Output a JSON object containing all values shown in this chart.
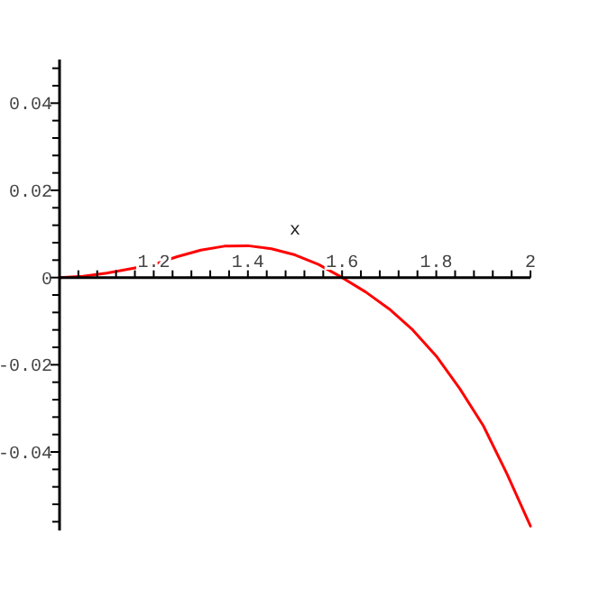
{
  "chart_data": {
    "type": "line",
    "xlabel": "x",
    "x": [
      1.0,
      1.05,
      1.1,
      1.15,
      1.2,
      1.25,
      1.3,
      1.35,
      1.4,
      1.45,
      1.5,
      1.55,
      1.6,
      1.65,
      1.7,
      1.75,
      1.8,
      1.85,
      1.9,
      1.95,
      2.0
    ],
    "series": [
      {
        "color": "#ff0000",
        "values": [
          0,
          0.0003,
          0.001,
          0.002,
          0.003,
          0.0048,
          0.0063,
          0.0072,
          0.0073,
          0.0066,
          0.0052,
          0.003,
          0,
          -0.0033,
          -0.0072,
          -0.012,
          -0.018,
          -0.0255,
          -0.034,
          -0.045,
          -0.057
        ]
      }
    ],
    "xlim": [
      1,
      2
    ],
    "ylim": [
      -0.058,
      0.05
    ],
    "xticks": [
      {
        "value": 1.04,
        "label": null
      },
      {
        "value": 1.08,
        "label": null
      },
      {
        "value": 1.12,
        "label": null
      },
      {
        "value": 1.16,
        "label": null
      },
      {
        "value": 1.2,
        "label": "1.2"
      },
      {
        "value": 1.24,
        "label": null
      },
      {
        "value": 1.28,
        "label": null
      },
      {
        "value": 1.32,
        "label": null
      },
      {
        "value": 1.36,
        "label": null
      },
      {
        "value": 1.4,
        "label": "1.4"
      },
      {
        "value": 1.44,
        "label": null
      },
      {
        "value": 1.48,
        "label": null
      },
      {
        "value": 1.52,
        "label": null
      },
      {
        "value": 1.56,
        "label": null
      },
      {
        "value": 1.6,
        "label": "1.6"
      },
      {
        "value": 1.64,
        "label": null
      },
      {
        "value": 1.68,
        "label": null
      },
      {
        "value": 1.72,
        "label": null
      },
      {
        "value": 1.76,
        "label": null
      },
      {
        "value": 1.8,
        "label": "1.8"
      },
      {
        "value": 1.84,
        "label": null
      },
      {
        "value": 1.88,
        "label": null
      },
      {
        "value": 1.92,
        "label": null
      },
      {
        "value": 1.96,
        "label": null
      },
      {
        "value": 2,
        "label": "2"
      }
    ],
    "yticks": [
      {
        "value": -0.056,
        "label": null
      },
      {
        "value": -0.052,
        "label": null
      },
      {
        "value": -0.048,
        "label": null
      },
      {
        "value": -0.044,
        "label": null
      },
      {
        "value": -0.04,
        "label": "-0.04"
      },
      {
        "value": -0.036,
        "label": null
      },
      {
        "value": -0.032,
        "label": null
      },
      {
        "value": -0.028,
        "label": null
      },
      {
        "value": -0.024,
        "label": null
      },
      {
        "value": -0.02,
        "label": "-0.02"
      },
      {
        "value": -0.016,
        "label": null
      },
      {
        "value": -0.012,
        "label": null
      },
      {
        "value": -0.008,
        "label": null
      },
      {
        "value": -0.004,
        "label": null
      },
      {
        "value": 0,
        "label": "0"
      },
      {
        "value": 0.004,
        "label": null
      },
      {
        "value": 0.008,
        "label": null
      },
      {
        "value": 0.012,
        "label": null
      },
      {
        "value": 0.016,
        "label": null
      },
      {
        "value": 0.02,
        "label": "0.02"
      },
      {
        "value": 0.024,
        "label": null
      },
      {
        "value": 0.028,
        "label": null
      },
      {
        "value": 0.032,
        "label": null
      },
      {
        "value": 0.036,
        "label": null
      },
      {
        "value": 0.04,
        "label": "0.04"
      },
      {
        "value": 0.044,
        "label": null
      },
      {
        "value": 0.048,
        "label": null
      }
    ],
    "grid": false
  }
}
